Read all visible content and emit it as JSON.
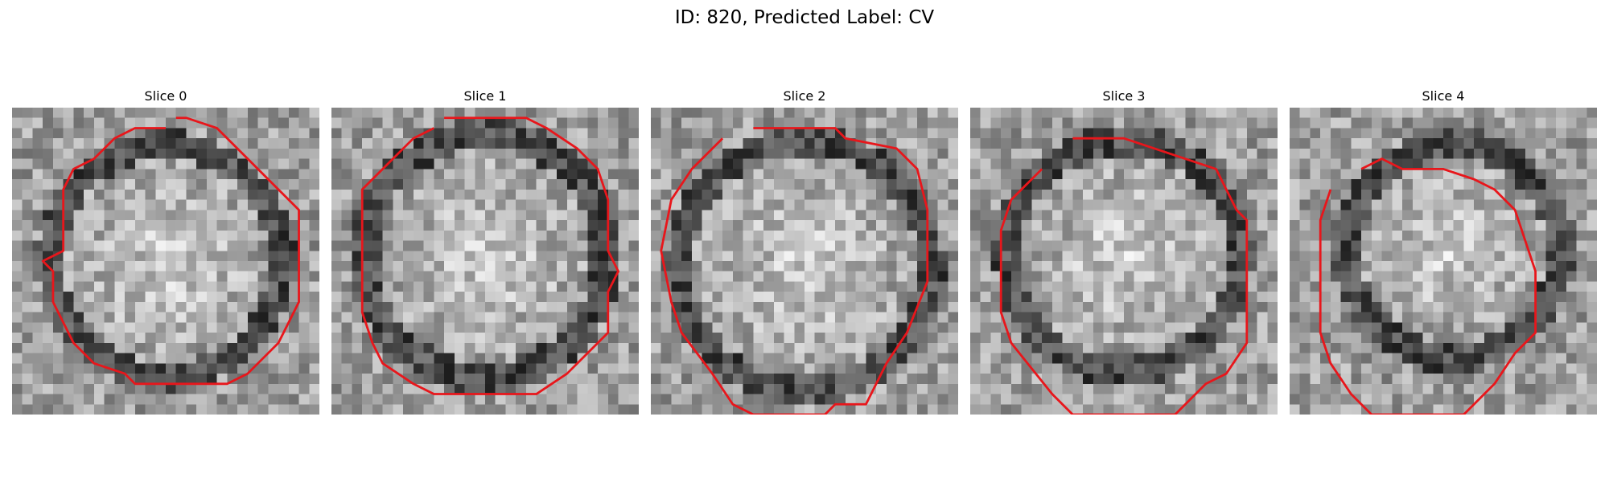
{
  "figure": {
    "title": "ID: 820, Predicted Label: CV"
  },
  "panels": [
    {
      "title": "Slice 0"
    },
    {
      "title": "Slice 1"
    },
    {
      "title": "Slice 2"
    },
    {
      "title": "Slice 3"
    },
    {
      "title": "Slice 4"
    }
  ],
  "colors": {
    "contour": "#e8161b"
  }
}
